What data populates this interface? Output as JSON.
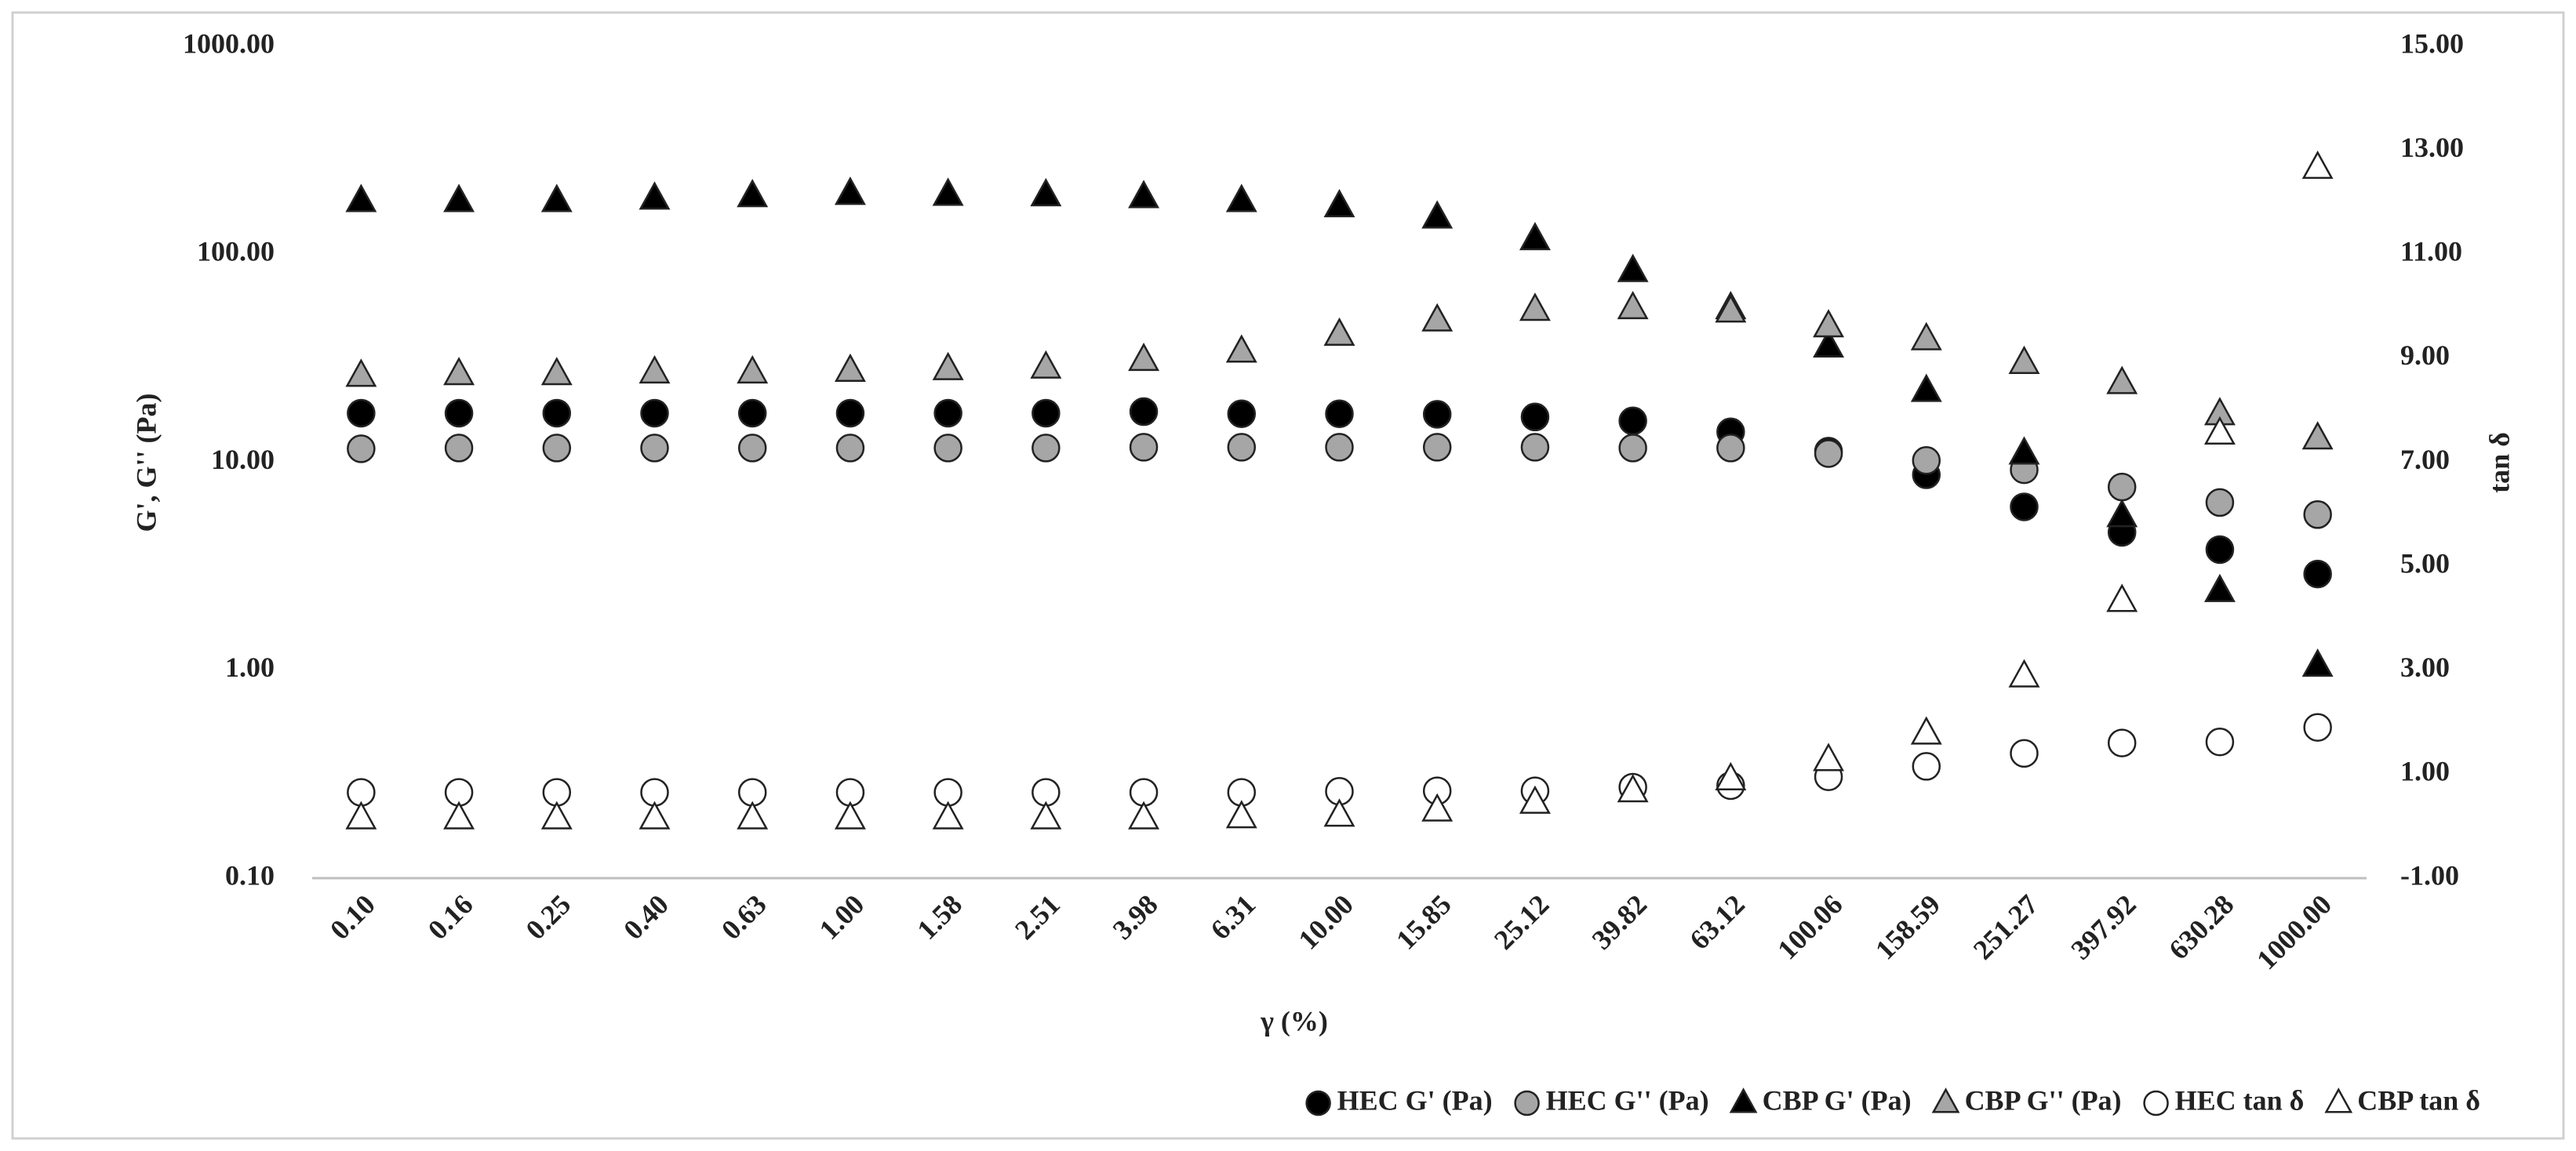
{
  "chart_data": {
    "type": "scatter",
    "x_label": "γ (%)",
    "y_label": "G', G'' (Pa)",
    "y2_label": "tan δ",
    "categories": [
      "0.10",
      "0.16",
      "0.25",
      "0.40",
      "0.63",
      "1.00",
      "1.58",
      "2.51",
      "3.98",
      "6.31",
      "10.00",
      "15.85",
      "25.12",
      "39.82",
      "63.12",
      "100.06",
      "158.59",
      "251.27",
      "397.92",
      "630.28",
      "1000.00"
    ],
    "yscale": "log",
    "ylim": [
      0.1,
      1000
    ],
    "yticks": [
      {
        "value": 0.1,
        "label": "0.10"
      },
      {
        "value": 1,
        "label": "1.00"
      },
      {
        "value": 10,
        "label": "10.00"
      },
      {
        "value": 100,
        "label": "100.00"
      },
      {
        "value": 1000,
        "label": "1000.00"
      }
    ],
    "y2lim": [
      -1,
      15
    ],
    "y2ticks": [
      {
        "value": -1,
        "label": "-1.00"
      },
      {
        "value": 1,
        "label": "1.00"
      },
      {
        "value": 3,
        "label": "3.00"
      },
      {
        "value": 5,
        "label": "5.00"
      },
      {
        "value": 7,
        "label": "7.00"
      },
      {
        "value": 9,
        "label": "9.00"
      },
      {
        "value": 11,
        "label": "11.00"
      },
      {
        "value": 13,
        "label": "13.00"
      },
      {
        "value": 15,
        "label": "15.00"
      }
    ],
    "grid": false,
    "legend": "bottom-right",
    "series": [
      {
        "name": "HEC G' (Pa)",
        "color": "#000000",
        "marker": "circle",
        "values": [
          17.2,
          17.2,
          17.2,
          17.2,
          17.2,
          17.2,
          17.2,
          17.2,
          17.5,
          17.1,
          17.1,
          17.0,
          16.5,
          15.8,
          14.0,
          11.3,
          8.7,
          6.1,
          4.6,
          3.8,
          2.9
        ]
      },
      {
        "name": "HEC G'' (Pa)",
        "color": "#a6a6a6",
        "marker": "circle",
        "values": [
          11.6,
          11.7,
          11.7,
          11.7,
          11.7,
          11.7,
          11.7,
          11.7,
          11.8,
          11.8,
          11.8,
          11.8,
          11.8,
          11.7,
          11.7,
          11.0,
          10.2,
          9.2,
          7.6,
          6.4,
          5.6
        ]
      },
      {
        "name": "CBP G' (Pa)",
        "color": "#000000",
        "marker": "triangle",
        "values": [
          180,
          180,
          180,
          185,
          190,
          195,
          193,
          192,
          188,
          180,
          170,
          150,
          118,
          83,
          55,
          36,
          22,
          11,
          5.5,
          2.4,
          1.05
        ]
      },
      {
        "name": "CBP G'' (Pa)",
        "color": "#a6a6a6",
        "marker": "triangle",
        "values": [
          26,
          26.5,
          26.5,
          27,
          27,
          27.5,
          28,
          28.5,
          31,
          34,
          41,
          48,
          54,
          55,
          53,
          45,
          39,
          30,
          24,
          17,
          13
        ]
      },
      {
        "name": "HEC tan δ",
        "color": "#ffffff",
        "marker": "circle",
        "axis": "y2",
        "values": [
          0.65,
          0.65,
          0.65,
          0.65,
          0.65,
          0.65,
          0.65,
          0.65,
          0.65,
          0.65,
          0.67,
          0.68,
          0.68,
          0.75,
          0.78,
          0.95,
          1.15,
          1.4,
          1.6,
          1.62,
          1.9
        ]
      },
      {
        "name": "CBP tan δ",
        "color": "#ffffff",
        "marker": "triangle",
        "axis": "y2",
        "values": [
          0.15,
          0.15,
          0.15,
          0.15,
          0.15,
          0.15,
          0.15,
          0.15,
          0.15,
          0.17,
          0.2,
          0.3,
          0.45,
          0.67,
          0.9,
          1.27,
          1.78,
          2.88,
          4.33,
          7.55,
          12.66
        ]
      }
    ]
  }
}
